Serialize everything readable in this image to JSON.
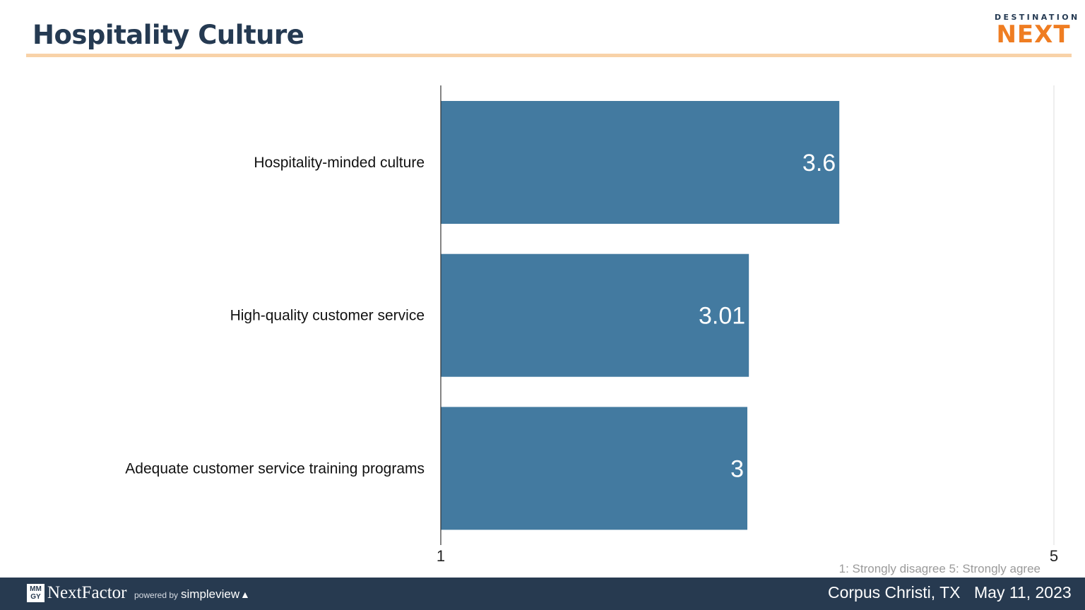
{
  "header": {
    "title": "Hospitality Culture",
    "logo_top": "DESTINATION",
    "logo_main": "NEXT"
  },
  "chart_data": {
    "type": "bar",
    "orientation": "horizontal",
    "categories": [
      "Hospitality-minded culture",
      "High-quality customer service",
      "Adequate customer service training programs"
    ],
    "values": [
      3.6,
      3.01,
      3
    ],
    "value_labels": [
      "3.6",
      "3.01",
      "3"
    ],
    "xlim": [
      1,
      5
    ],
    "x_ticks": [
      "1",
      "5"
    ],
    "bar_color": "#437aa0",
    "label_color": "#ffffff",
    "title": "",
    "xlabel": "",
    "ylabel": ""
  },
  "scale_note": "1: Strongly disagree  5: Strongly agree",
  "footer": {
    "mmgy": "MM GY",
    "brand": "NextFactor",
    "powered_by": "powered by",
    "partner": "simpleview",
    "location": "Corpus Christi, TX",
    "date": "May 11, 2023"
  }
}
